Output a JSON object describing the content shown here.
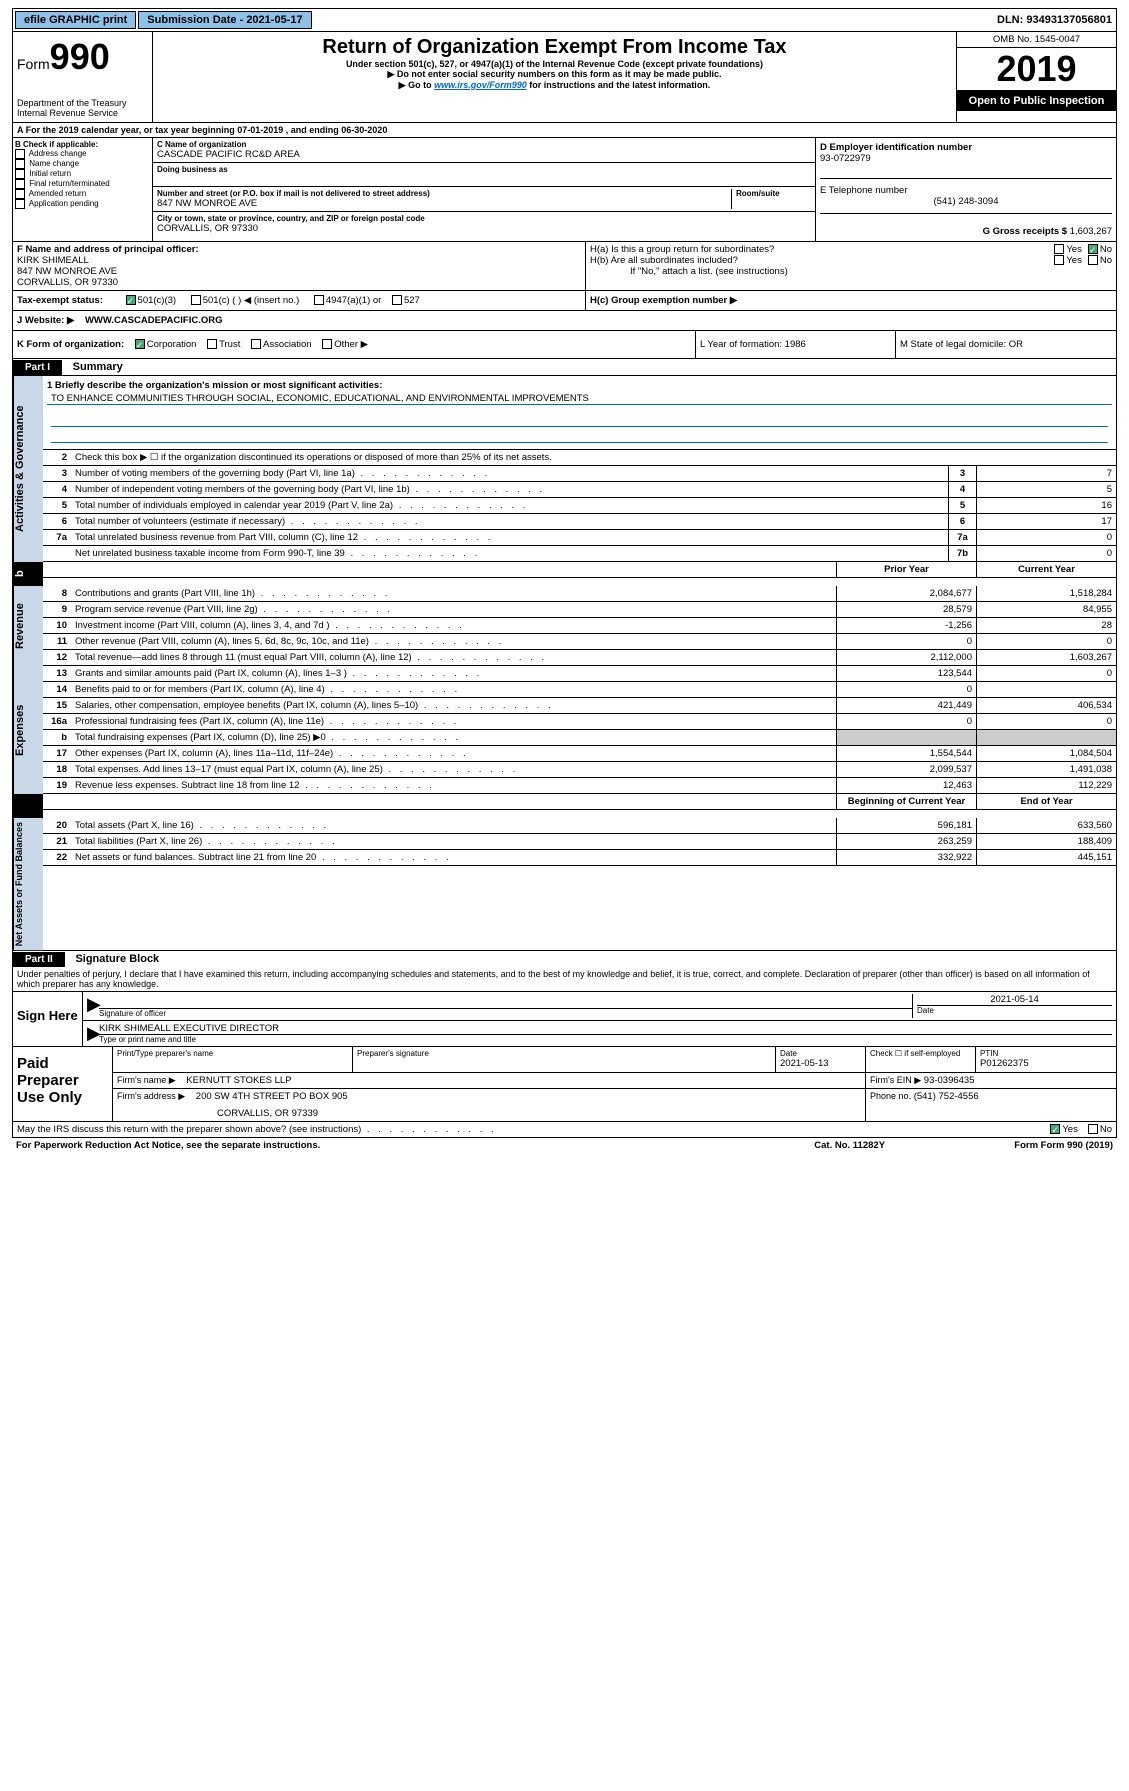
{
  "topbar": {
    "efile": "efile GRAPHIC print",
    "submission": "Submission Date - 2021-05-17",
    "dln": "DLN: 93493137056801"
  },
  "header": {
    "form_word": "Form",
    "form_num": "990",
    "dept": "Department of the Treasury\nInternal Revenue Service",
    "title": "Return of Organization Exempt From Income Tax",
    "sub1": "Under section 501(c), 527, or 4947(a)(1) of the Internal Revenue Code (except private foundations)",
    "sub2": "▶ Do not enter social security numbers on this form as it may be made public.",
    "sub3_pre": "▶ Go to ",
    "sub3_link": "www.irs.gov/Form990",
    "sub3_post": " for instructions and the latest information.",
    "omb": "OMB No. 1545-0047",
    "year": "2019",
    "open": "Open to Public Inspection"
  },
  "row_a": "A   For the 2019 calendar year, or tax year beginning 07-01-2019     , and ending 06-30-2020",
  "section_b": {
    "label": "B Check if applicable:",
    "items": [
      "Address change",
      "Name change",
      "Initial return",
      "Final return/terminated",
      "Amended return",
      "Application pending"
    ]
  },
  "section_c": {
    "name_lbl": "C Name of organization",
    "name": "CASCADE PACIFIC RC&D AREA",
    "dba_lbl": "Doing business as",
    "addr_lbl": "Number and street (or P.O. box if mail is not delivered to street address)",
    "room_lbl": "Room/suite",
    "addr": "847 NW MONROE AVE",
    "city_lbl": "City or town, state or province, country, and ZIP or foreign postal code",
    "city": "CORVALLIS, OR  97330"
  },
  "section_d": {
    "ein_lbl": "D Employer identification number",
    "ein": "93-0722979",
    "tel_lbl": "E Telephone number",
    "tel": "(541) 248-3094",
    "gross_lbl": "G Gross receipts $",
    "gross": "1,603,267"
  },
  "section_f": {
    "lbl": "F  Name and address of principal officer:",
    "name": "KIRK SHIMEALL",
    "addr1": "847 NW MONROE AVE",
    "addr2": "CORVALLIS, OR  97330"
  },
  "section_h": {
    "ha": "H(a)  Is this a group return for subordinates?",
    "hb": "H(b)  Are all subordinates included?",
    "hb_note": "If \"No,\" attach a list. (see instructions)",
    "hc": "H(c)  Group exemption number ▶",
    "yes": "Yes",
    "no": "No"
  },
  "section_i": {
    "lbl": "Tax-exempt status:",
    "opts": [
      "501(c)(3)",
      "501(c) (   ) ◀ (insert no.)",
      "4947(a)(1) or",
      "527"
    ]
  },
  "section_j": {
    "lbl": "J    Website: ▶",
    "val": "WWW.CASCADEPACIFIC.ORG"
  },
  "section_k": {
    "lbl": "K Form of organization:",
    "opts": [
      "Corporation",
      "Trust",
      "Association",
      "Other ▶"
    ],
    "l": "L Year of formation: 1986",
    "m": "M State of legal domicile: OR"
  },
  "parts": {
    "p1": "Part I",
    "p1_title": "Summary",
    "p2": "Part II",
    "p2_title": "Signature Block"
  },
  "summary": {
    "line1_lbl": "1  Briefly describe the organization's mission or most significant activities:",
    "line1_val": "TO ENHANCE COMMUNITIES THROUGH SOCIAL, ECONOMIC, EDUCATIONAL, AND ENVIRONMENTAL IMPROVEMENTS",
    "line2": "Check this box ▶ ☐  if the organization discontinued its operations or disposed of more than 25% of its net assets.",
    "lines_top": [
      {
        "n": "3",
        "t": "Number of voting members of the governing body (Part VI, line 1a)",
        "box": "3",
        "v": "7"
      },
      {
        "n": "4",
        "t": "Number of independent voting members of the governing body (Part VI, line 1b)",
        "box": "4",
        "v": "5"
      },
      {
        "n": "5",
        "t": "Total number of individuals employed in calendar year 2019 (Part V, line 2a)",
        "box": "5",
        "v": "16"
      },
      {
        "n": "6",
        "t": "Total number of volunteers (estimate if necessary)",
        "box": "6",
        "v": "17"
      },
      {
        "n": "7a",
        "t": "Total unrelated business revenue from Part VIII, column (C), line 12",
        "box": "7a",
        "v": "0"
      },
      {
        "n": "",
        "t": "Net unrelated business taxable income from Form 990-T, line 39",
        "box": "7b",
        "v": "0"
      }
    ],
    "hdr_prior": "Prior Year",
    "hdr_curr": "Current Year",
    "revenue": [
      {
        "n": "8",
        "t": "Contributions and grants (Part VIII, line 1h)",
        "p": "2,084,677",
        "c": "1,518,284"
      },
      {
        "n": "9",
        "t": "Program service revenue (Part VIII, line 2g)",
        "p": "28,579",
        "c": "84,955"
      },
      {
        "n": "10",
        "t": "Investment income (Part VIII, column (A), lines 3, 4, and 7d )",
        "p": "-1,256",
        "c": "28"
      },
      {
        "n": "11",
        "t": "Other revenue (Part VIII, column (A), lines 5, 6d, 8c, 9c, 10c, and 11e)",
        "p": "0",
        "c": "0"
      },
      {
        "n": "12",
        "t": "Total revenue—add lines 8 through 11 (must equal Part VIII, column (A), line 12)",
        "p": "2,112,000",
        "c": "1,603,267"
      }
    ],
    "expenses": [
      {
        "n": "13",
        "t": "Grants and similar amounts paid (Part IX, column (A), lines 1–3 )",
        "p": "123,544",
        "c": "0"
      },
      {
        "n": "14",
        "t": "Benefits paid to or for members (Part IX, column (A), line 4)",
        "p": "0",
        "c": ""
      },
      {
        "n": "15",
        "t": "Salaries, other compensation, employee benefits (Part IX, column (A), lines 5–10)",
        "p": "421,449",
        "c": "406,534"
      },
      {
        "n": "16a",
        "t": "Professional fundraising fees (Part IX, column (A), line 11e)",
        "p": "0",
        "c": "0"
      },
      {
        "n": "b",
        "t": "Total fundraising expenses (Part IX, column (D), line 25) ▶0",
        "p": "",
        "c": "",
        "shade": true
      },
      {
        "n": "17",
        "t": "Other expenses (Part IX, column (A), lines 11a–11d, 11f–24e)",
        "p": "1,554,544",
        "c": "1,084,504"
      },
      {
        "n": "18",
        "t": "Total expenses. Add lines 13–17 (must equal Part IX, column (A), line 25)",
        "p": "2,099,537",
        "c": "1,491,038"
      },
      {
        "n": "19",
        "t": "Revenue less expenses. Subtract line 18 from line 12",
        "p": "12,463",
        "c": "112,229"
      }
    ],
    "hdr_begin": "Beginning of Current Year",
    "hdr_end": "End of Year",
    "netassets": [
      {
        "n": "20",
        "t": "Total assets (Part X, line 16)",
        "p": "596,181",
        "c": "633,560"
      },
      {
        "n": "21",
        "t": "Total liabilities (Part X, line 26)",
        "p": "263,259",
        "c": "188,409"
      },
      {
        "n": "22",
        "t": "Net assets or fund balances. Subtract line 21 from line 20",
        "p": "332,922",
        "c": "445,151"
      }
    ],
    "vlabels": {
      "ag": "Activities & Governance",
      "rev": "Revenue",
      "exp": "Expenses",
      "na": "Net Assets or\nFund Balances"
    }
  },
  "penalties": "Under penalties of perjury, I declare that I have examined this return, including accompanying schedules and statements, and to the best of my knowledge and belief, it is true, correct, and complete. Declaration of preparer (other than officer) is based on all information of which preparer has any knowledge.",
  "sign": {
    "lbl": "Sign Here",
    "sig_lbl": "Signature of officer",
    "date": "2021-05-14",
    "date_lbl": "Date",
    "name": "KIRK SHIMEALL  EXECUTIVE DIRECTOR",
    "name_lbl": "Type or print name and title"
  },
  "paid": {
    "lbl": "Paid Preparer Use Only",
    "r1": {
      "c1_lbl": "Print/Type preparer's name",
      "c2_lbl": "Preparer's signature",
      "c3_lbl": "Date",
      "c3": "2021-05-13",
      "c4_lbl": "Check ☐ if self-employed",
      "c5_lbl": "PTIN",
      "c5": "P01262375"
    },
    "r2": {
      "c1_lbl": "Firm's name      ▶",
      "c1": "KERNUTT STOKES LLP",
      "c2_lbl": "Firm's EIN ▶",
      "c2": "93-0396435"
    },
    "r3": {
      "c1_lbl": "Firm's address ▶",
      "c1": "200 SW 4TH STREET PO BOX 905",
      "c1b": "CORVALLIS, OR  97339",
      "c2_lbl": "Phone no.",
      "c2": "(541) 752-4556"
    }
  },
  "footer": {
    "discuss": "May the IRS discuss this return with the preparer shown above? (see instructions)",
    "yes": "Yes",
    "no": "No",
    "pra": "For Paperwork Reduction Act Notice, see the separate instructions.",
    "cat": "Cat. No. 11282Y",
    "form": "Form 990 (2019)"
  },
  "colors": {
    "blue_btn": "#8fc0e8",
    "link": "#0066cc",
    "vtab_bg": "#c8d8e8",
    "check_green": "#4a7"
  }
}
